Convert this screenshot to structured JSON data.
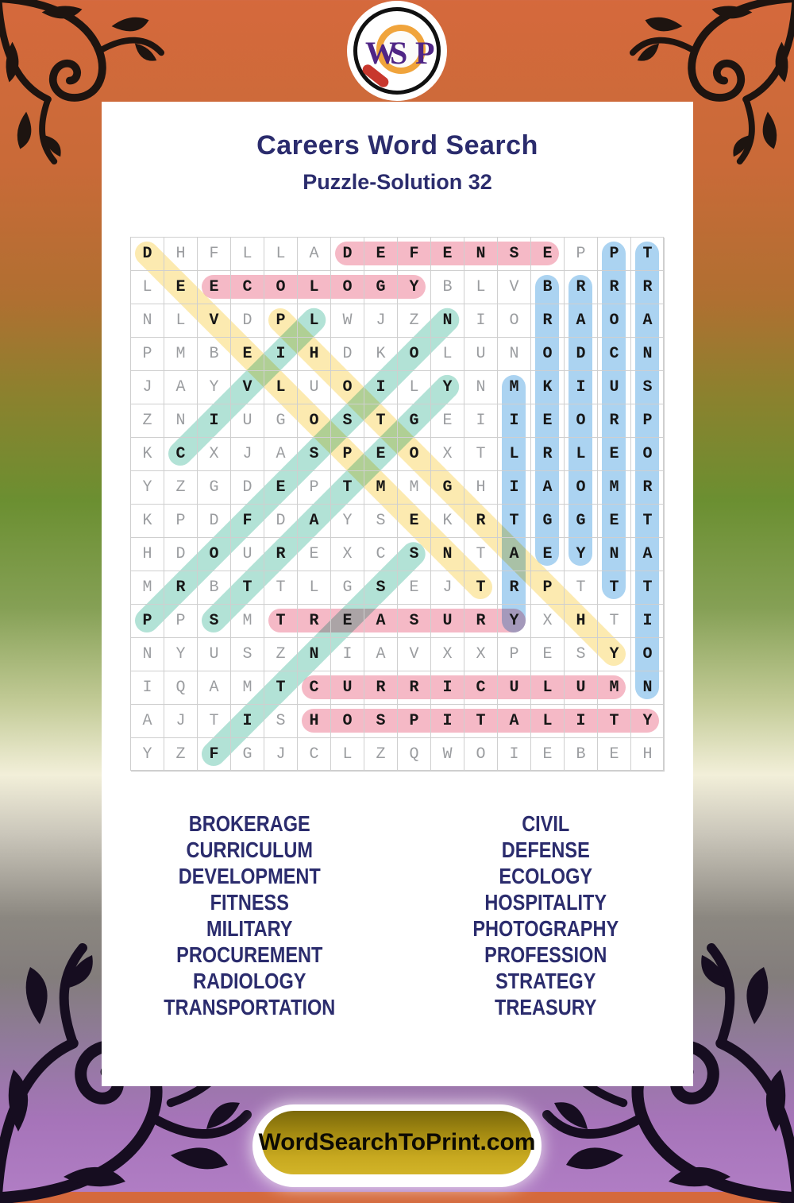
{
  "logo": {
    "w": "W",
    "s": "S",
    "p": "P"
  },
  "header": {
    "title": "Careers Word Search",
    "subtitle": "Puzzle-Solution 32"
  },
  "puzzle": {
    "size": 16,
    "grid": [
      "DHFLLADEFENSEPPT",
      "LEECOLOGYBLVBRRR",
      "NLVDPLWJZNIORAOA",
      "PMBEIHDKOLUNODCN",
      "JAYVLUOILYNMKIUS",
      "ZNIUGOSTGEIIEORP",
      "KCXJASPEOXTLRLEO",
      "YZGDEPTMMGHIAOMR",
      "KPDFDAYSEKRTGGET",
      "HDOUREXCSNTAEYNA",
      "MRBTTLGSEJTRPTTT",
      "PPSMTREASURYXHTI",
      "NYUSZNIAVXXPESYO",
      "IQAMTCURRICULUMN",
      "AJTISHOSPITALITY",
      "YZFGJCLZQWOIEBEH"
    ],
    "highlight_colors": {
      "pink": "#f5b9c6",
      "blue": "#abd3f1",
      "yellow": "#fceab0",
      "teal": "#b2e2d6"
    },
    "solutions": [
      {
        "word": "DEFENSE",
        "row": 1,
        "col": 7,
        "dr": 0,
        "dc": 1,
        "color": "pink"
      },
      {
        "word": "ECOLOGY",
        "row": 2,
        "col": 3,
        "dr": 0,
        "dc": 1,
        "color": "pink"
      },
      {
        "word": "TREASURY",
        "row": 12,
        "col": 5,
        "dr": 0,
        "dc": 1,
        "color": "pink"
      },
      {
        "word": "CURRICULUM",
        "row": 14,
        "col": 6,
        "dr": 0,
        "dc": 1,
        "color": "pink"
      },
      {
        "word": "HOSPITALITY",
        "row": 15,
        "col": 6,
        "dr": 0,
        "dc": 1,
        "color": "pink"
      },
      {
        "word": "PROCUREMENT",
        "row": 1,
        "col": 15,
        "dr": 1,
        "dc": 0,
        "color": "blue"
      },
      {
        "word": "TRANSPORTATION",
        "row": 1,
        "col": 16,
        "dr": 1,
        "dc": 0,
        "color": "blue"
      },
      {
        "word": "BROKERAGE",
        "row": 2,
        "col": 13,
        "dr": 1,
        "dc": 0,
        "color": "blue"
      },
      {
        "word": "RADIOLOGY",
        "row": 2,
        "col": 14,
        "dr": 1,
        "dc": 0,
        "color": "blue"
      },
      {
        "word": "MILITARY",
        "row": 5,
        "col": 12,
        "dr": 1,
        "dc": 0,
        "color": "blue"
      },
      {
        "word": "DEVELOPMENT",
        "row": 1,
        "col": 1,
        "dr": 1,
        "dc": 1,
        "color": "yellow"
      },
      {
        "word": "PHOTOGRAPHY",
        "row": 3,
        "col": 5,
        "dr": 1,
        "dc": 1,
        "color": "yellow"
      },
      {
        "word": "CIVIL",
        "row": 7,
        "col": 2,
        "dr": -1,
        "dc": 1,
        "color": "teal"
      },
      {
        "word": "PROFESSION",
        "row": 12,
        "col": 1,
        "dr": -1,
        "dc": 1,
        "color": "teal"
      },
      {
        "word": "STRATEGY",
        "row": 12,
        "col": 3,
        "dr": -1,
        "dc": 1,
        "color": "teal"
      },
      {
        "word": "FITNESS",
        "row": 16,
        "col": 3,
        "dr": -1,
        "dc": 1,
        "color": "teal"
      }
    ]
  },
  "word_list": {
    "left": [
      "BROKERAGE",
      "CURRICULUM",
      "DEVELOPMENT",
      "FITNESS",
      "MILITARY",
      "PROCUREMENT",
      "RADIOLOGY",
      "TRANSPORTATION"
    ],
    "right": [
      "CIVIL",
      "DEFENSE",
      "ECOLOGY",
      "HOSPITALITY",
      "PHOTOGRAPHY",
      "PROFESSION",
      "STRATEGY",
      "TREASURY"
    ]
  },
  "footer": {
    "site_label": "WordSearchToPrint.com"
  }
}
